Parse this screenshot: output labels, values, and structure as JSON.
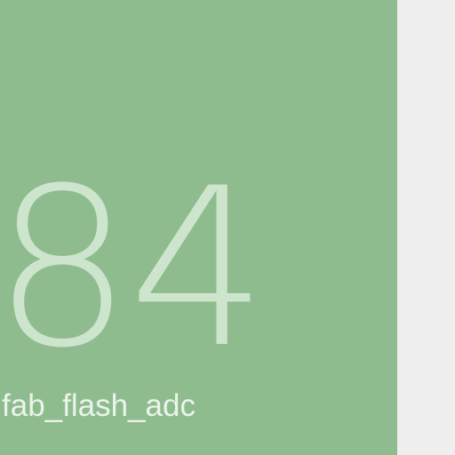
{
  "tile": {
    "number": "84",
    "label": "fab_flash_adc",
    "colors": {
      "background": "#8fbc8f",
      "number": "#cde5cd",
      "label": "#eaf4ea"
    }
  },
  "page": {
    "background": "#eeeeee"
  }
}
